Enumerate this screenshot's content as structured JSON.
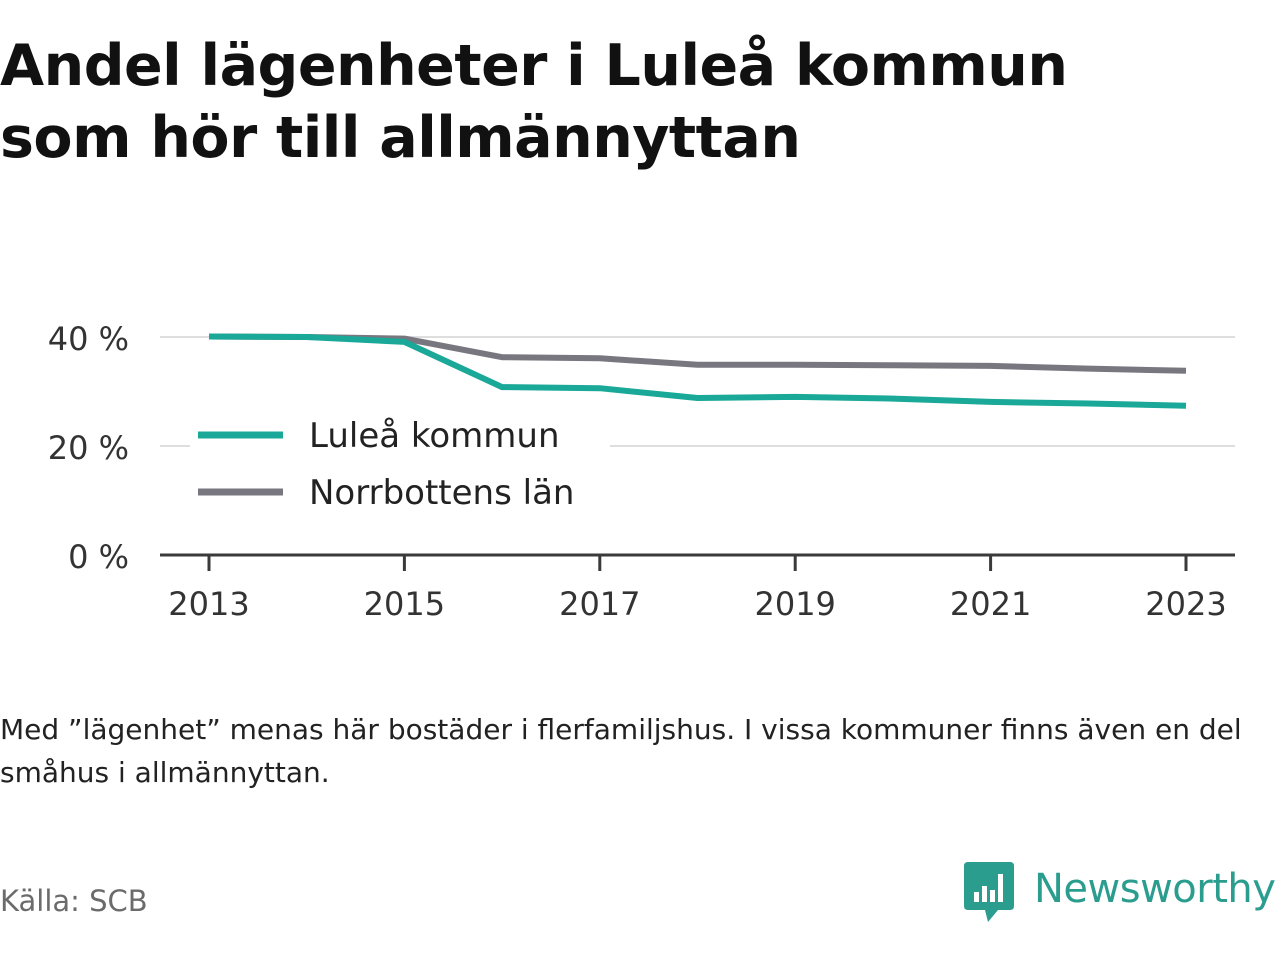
{
  "title": {
    "line1": "Andel lägenheter i Luleå kommun",
    "line2": "som hör till allmännyttan"
  },
  "note": "Med ”lägenhet” menas här bostäder i flerfamiljshus. I vissa kommuner finns även en del småhus i allmännyttan.",
  "source": "Källa: SCB",
  "brand": {
    "name": "Newsworthy",
    "logo_icon": "bar-chart-speech-bubble-icon",
    "color": "#2a9d8f"
  },
  "chart_data": {
    "type": "line",
    "x": [
      2013,
      2014,
      2015,
      2016,
      2017,
      2018,
      2019,
      2020,
      2021,
      2022,
      2023
    ],
    "x_ticks": [
      2013,
      2015,
      2017,
      2019,
      2021,
      2023
    ],
    "x_tick_labels": [
      "2013",
      "2015",
      "2017",
      "2019",
      "2021",
      "2023"
    ],
    "y_ticks": [
      0,
      20,
      40
    ],
    "y_tick_labels": [
      "0 %",
      "20 %",
      "40 %"
    ],
    "ylim": [
      0,
      40
    ],
    "grid": true,
    "legend_position": "left",
    "series": [
      {
        "name": "Luleå kommun",
        "color": "#1aa898",
        "values": [
          40.1,
          40.0,
          39.1,
          30.8,
          30.6,
          28.8,
          29.0,
          28.7,
          28.1,
          27.8,
          27.4
        ]
      },
      {
        "name": "Norrbottens län",
        "color": "#78777f",
        "values": [
          40.1,
          40.0,
          39.7,
          36.3,
          36.1,
          34.9,
          34.9,
          34.8,
          34.7,
          34.2,
          33.8
        ]
      }
    ]
  }
}
